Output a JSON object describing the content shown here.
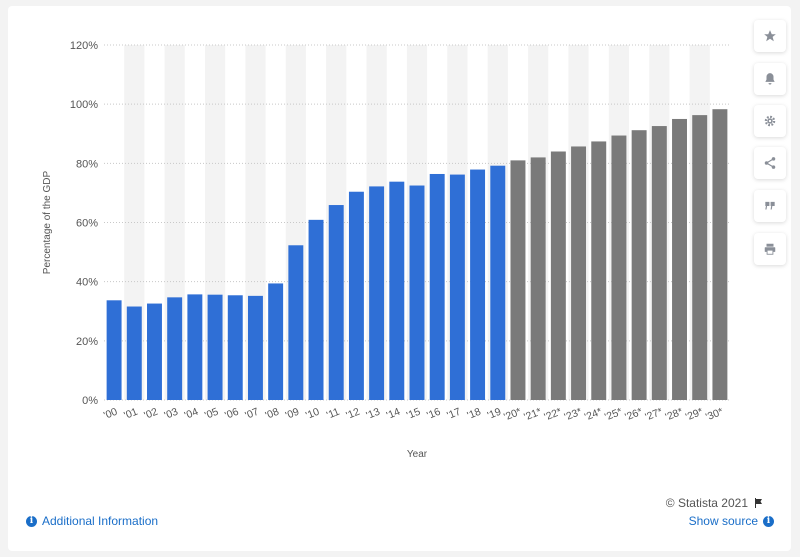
{
  "chart_data": {
    "type": "bar",
    "xlabel": "Year",
    "ylabel": "Percentage of the GDP",
    "ylim": [
      0,
      120
    ],
    "yticks": [
      "0%",
      "20%",
      "40%",
      "60%",
      "80%",
      "100%",
      "120%"
    ],
    "ytick_values": [
      0,
      20,
      40,
      60,
      80,
      100,
      120
    ],
    "grid": true,
    "categories": [
      "'00",
      "'01",
      "'02",
      "'03",
      "'04",
      "'05",
      "'06",
      "'07",
      "'08",
      "'09",
      "'10",
      "'11",
      "'12",
      "'13",
      "'14",
      "'15",
      "'16",
      "'17",
      "'18",
      "'19",
      "'20*",
      "'21*",
      "'22*",
      "'23*",
      "'24*",
      "'25*",
      "'26*",
      "'27*",
      "'28*",
      "'29*",
      "'30*"
    ],
    "values": [
      33.7,
      31.6,
      32.6,
      34.7,
      35.7,
      35.6,
      35.4,
      35.2,
      39.4,
      52.3,
      60.9,
      65.9,
      70.4,
      72.2,
      73.8,
      72.5,
      76.4,
      76.2,
      77.9,
      79.2,
      81.0,
      82.0,
      84.0,
      85.7,
      87.4,
      89.4,
      91.2,
      92.6,
      95.0,
      96.3,
      98.3
    ],
    "colors": {
      "actual": "#2f6fd6",
      "projected": "#7a7a7a",
      "band": "#f3f3f3",
      "grid": "#c8c8c8",
      "axis_text": "#555555"
    },
    "projected_from_index": 20
  },
  "footer": {
    "copyright": "© Statista 2021",
    "additional_info": "Additional Information",
    "show_source": "Show source"
  },
  "toolbar": {
    "icons": [
      "star-icon",
      "bell-icon",
      "gear-icon",
      "share-icon",
      "quote-icon",
      "print-icon"
    ]
  }
}
